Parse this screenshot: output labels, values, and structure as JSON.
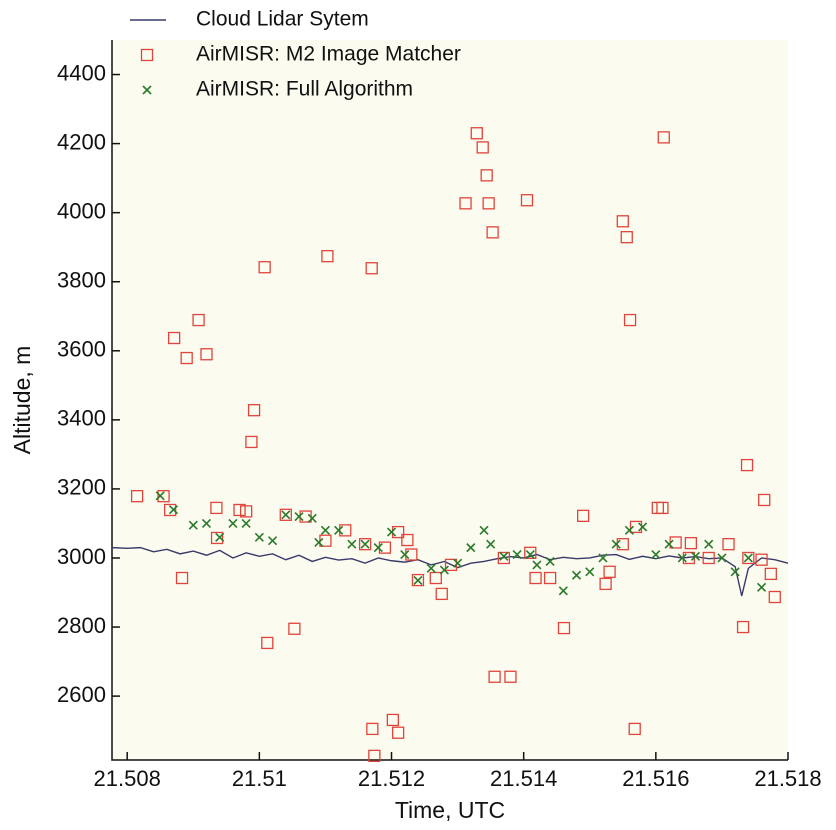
{
  "chart_data": {
    "type": "scatter",
    "xlabel": "Time, UTC",
    "ylabel": "Altitude, m",
    "xlim": [
      21.50777,
      21.518
    ],
    "ylim": [
      2415,
      4500
    ],
    "xticks": [
      21.508,
      21.51,
      21.512,
      21.514,
      21.516,
      21.518
    ],
    "yticks": [
      2600,
      2800,
      3000,
      3200,
      3400,
      3600,
      3800,
      4000,
      4200,
      4400
    ],
    "legend": "upper left",
    "series": [
      {
        "name": "Cloud Lidar Sytem",
        "marker": "line",
        "color": "#3a3a6a",
        "x": [
          21.50777,
          21.508,
          21.5082,
          21.5084,
          21.5086,
          21.5088,
          21.509,
          21.5092,
          21.5094,
          21.5096,
          21.5098,
          21.51,
          21.5102,
          21.5104,
          21.5106,
          21.5108,
          21.511,
          21.5112,
          21.5114,
          21.5116,
          21.5118,
          21.512,
          21.5122,
          21.5124,
          21.5126,
          21.5128,
          21.513,
          21.5132,
          21.5134,
          21.5136,
          21.5138,
          21.514,
          21.5142,
          21.5144,
          21.5146,
          21.5148,
          21.515,
          21.5152,
          21.5154,
          21.5156,
          21.5158,
          21.516,
          21.5162,
          21.5164,
          21.5166,
          21.5168,
          21.517,
          21.5172,
          21.5173,
          21.5174,
          21.5176,
          21.5178,
          21.518
        ],
        "values": [
          3030,
          3028,
          3030,
          3018,
          3025,
          3012,
          3020,
          3008,
          3022,
          3000,
          3015,
          3005,
          3012,
          2995,
          3008,
          2990,
          3002,
          2994,
          2998,
          2985,
          3000,
          2992,
          2988,
          2995,
          2980,
          2990,
          2972,
          2985,
          2990,
          2998,
          3004,
          3000,
          3010,
          2995,
          3002,
          2998,
          3000,
          3008,
          3010,
          2996,
          3005,
          2998,
          3006,
          3000,
          3004,
          2998,
          3000,
          2975,
          2890,
          2970,
          3000,
          2995,
          2985
        ]
      },
      {
        "name": "AirMISR: M2 Image Matcher",
        "marker": "square",
        "color": "#e0443a",
        "x": [
          21.50815,
          21.50855,
          21.50865,
          21.50871,
          21.50883,
          21.5089,
          21.50908,
          21.5092,
          21.50935,
          21.50936,
          21.5097,
          21.50988,
          21.50992,
          21.51008,
          21.51012,
          21.51053,
          21.51103,
          21.51171,
          21.51174,
          21.5117,
          21.51202,
          21.5121,
          21.51224,
          21.5124,
          21.51267,
          21.51276,
          21.51312,
          21.51329,
          21.51338,
          21.51344,
          21.51347,
          21.51353,
          21.51356,
          21.5138,
          21.51405,
          21.51418,
          21.5144,
          21.51461,
          21.5149,
          21.51524,
          21.5155,
          21.51556,
          21.51561,
          21.51568,
          21.51603,
          21.51612,
          21.51653,
          21.51732,
          21.51738,
          21.51764,
          21.51774,
          21.5178,
          21.5098,
          21.5104,
          21.5107,
          21.511,
          21.5113,
          21.5116,
          21.5119,
          21.5121,
          21.5123,
          21.5129,
          21.5137,
          21.5141,
          21.5153,
          21.5155,
          21.5157,
          21.5161,
          21.5163,
          21.5165,
          21.5168,
          21.5171,
          21.5174,
          21.5176
        ],
        "values": [
          3179,
          3179,
          3139,
          3637,
          2942,
          3579,
          3689,
          3590,
          3145,
          3058,
          3139,
          3336,
          3428,
          3842,
          2754,
          2795,
          3874,
          2505,
          2427,
          3839,
          2531,
          2494,
          3052,
          2936,
          2942,
          2896,
          4027,
          4230,
          4189,
          4108,
          4027,
          3943,
          2656,
          2656,
          4036,
          2942,
          2942,
          2797,
          3122,
          2925,
          3975,
          3929,
          3689,
          2505,
          3145,
          4218,
          3043,
          2800,
          3269,
          3168,
          2954,
          2887,
          3135,
          3125,
          3120,
          3050,
          3080,
          3040,
          3030,
          3075,
          3010,
          2980,
          3000,
          3015,
          2960,
          3040,
          3090,
          3145,
          3045,
          3000,
          3000,
          3040,
          3000,
          2995
        ]
      },
      {
        "name": "AirMISR: Full Algorithm",
        "marker": "x",
        "color": "#2a7a2a",
        "x": [
          21.5085,
          21.5087,
          21.509,
          21.5092,
          21.5094,
          21.5096,
          21.5098,
          21.51,
          21.5102,
          21.5104,
          21.5106,
          21.5108,
          21.5109,
          21.511,
          21.5112,
          21.5114,
          21.5116,
          21.5118,
          21.512,
          21.5122,
          21.5124,
          21.5126,
          21.5128,
          21.513,
          21.5132,
          21.5134,
          21.5135,
          21.5137,
          21.5139,
          21.5141,
          21.5142,
          21.5144,
          21.5146,
          21.5148,
          21.515,
          21.5152,
          21.5154,
          21.5156,
          21.5158,
          21.516,
          21.5162,
          21.5164,
          21.5166,
          21.5168,
          21.517,
          21.5172,
          21.5174,
          21.5176
        ],
        "values": [
          3180,
          3140,
          3095,
          3100,
          3060,
          3100,
          3100,
          3060,
          3050,
          3125,
          3120,
          3115,
          3045,
          3080,
          3080,
          3040,
          3040,
          3030,
          3075,
          3010,
          2935,
          2970,
          2965,
          2985,
          3030,
          3080,
          3040,
          3005,
          3010,
          3010,
          2980,
          2990,
          2905,
          2950,
          2960,
          3000,
          3040,
          3080,
          3090,
          3010,
          3040,
          3000,
          3005,
          3040,
          3000,
          2960,
          3000,
          2915
        ]
      }
    ]
  }
}
